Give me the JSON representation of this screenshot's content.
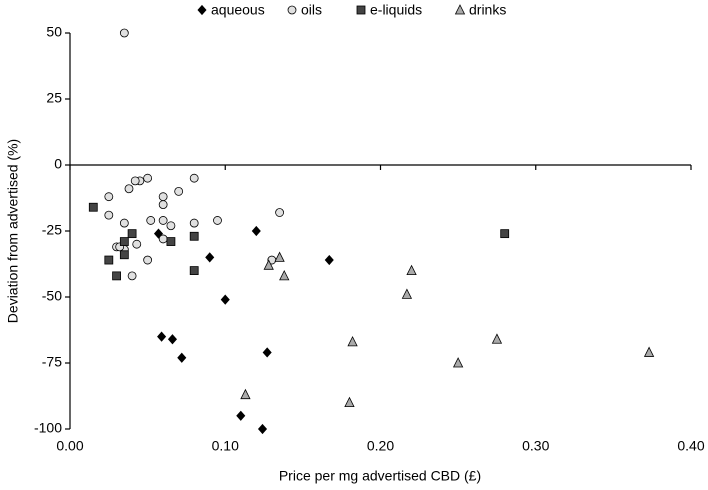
{
  "chart_data": {
    "type": "scatter",
    "x_label": "Price per mg advertised CBD (£)",
    "y_label": "Deviation from advertised (%)",
    "xlim": [
      0,
      0.4
    ],
    "ylim": [
      -100,
      50
    ],
    "xticks": [
      {
        "value": 0,
        "label": "0.00"
      },
      {
        "value": 0.1,
        "label": "0.10"
      },
      {
        "value": 0.2,
        "label": "0.20"
      },
      {
        "value": 0.3,
        "label": "0.30"
      },
      {
        "value": 0.4,
        "label": "0.40"
      }
    ],
    "yticks": [
      -100,
      -75,
      -50,
      -25,
      0,
      25,
      50
    ],
    "legend": "top",
    "series": [
      {
        "name": "aqueous",
        "color": "#000000",
        "marker": "diamond",
        "x": [
          0.057,
          0.12,
          0.09,
          0.167,
          0.1,
          0.059,
          0.066,
          0.072,
          0.127,
          0.11,
          0.124
        ],
        "values": [
          -26,
          -25,
          -35,
          -36,
          -51,
          -65,
          -66,
          -73,
          -71,
          -95,
          -100
        ]
      },
      {
        "name": "oils",
        "color": "#e0e0e0",
        "marker": "circle",
        "x": [
          0.035,
          0.025,
          0.025,
          0.038,
          0.045,
          0.05,
          0.052,
          0.06,
          0.06,
          0.07,
          0.065,
          0.06,
          0.08,
          0.08,
          0.095,
          0.035,
          0.043,
          0.03,
          0.035,
          0.05,
          0.04,
          0.06,
          0.042,
          0.135,
          0.13,
          0.032
        ],
        "values": [
          50,
          -12,
          -19,
          -9,
          -6,
          -5,
          -21,
          -15,
          -12,
          -10,
          -23,
          -21,
          -5,
          -22,
          -21,
          -22,
          -30,
          -31,
          -32,
          -36,
          -42,
          -28,
          -6,
          -18,
          -36,
          -31
        ]
      },
      {
        "name": "e-liquids",
        "color": "#444444",
        "marker": "square",
        "x": [
          0.015,
          0.035,
          0.04,
          0.025,
          0.035,
          0.03,
          0.065,
          0.08,
          0.08,
          0.28
        ],
        "values": [
          -16,
          -29,
          -26,
          -36,
          -34,
          -42,
          -29,
          -27,
          -40,
          -26
        ]
      },
      {
        "name": "drinks",
        "color": "#aaaaaa",
        "marker": "triangle",
        "x": [
          0.128,
          0.135,
          0.138,
          0.22,
          0.217,
          0.182,
          0.275,
          0.25,
          0.373,
          0.113,
          0.18
        ],
        "values": [
          -38,
          -35,
          -42,
          -40,
          -49,
          -67,
          -66,
          -75,
          -71,
          -87,
          -90
        ]
      }
    ]
  }
}
